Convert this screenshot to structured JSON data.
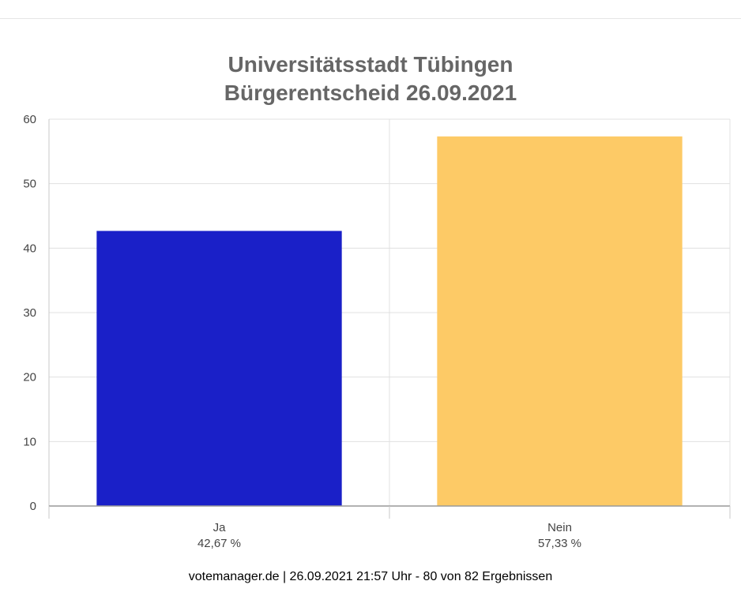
{
  "chart_data": {
    "type": "bar",
    "title_line1": "Universitätsstadt Tübingen",
    "title_line2": "Bürgerentscheid 26.09.2021",
    "categories": [
      "Ja",
      "Nein"
    ],
    "value_labels": [
      "42,67 %",
      "57,33 %"
    ],
    "values": [
      42.67,
      57.33
    ],
    "colors": [
      "#1a20c8",
      "#fdca66"
    ],
    "ylim": [
      0,
      60
    ],
    "yticks": [
      0,
      10,
      20,
      30,
      40,
      50,
      60
    ],
    "grid": true,
    "legend": "none"
  },
  "footer": {
    "text": "votemanager.de | 26.09.2021 21:57 Uhr - 80 von 82 Ergebnissen"
  }
}
